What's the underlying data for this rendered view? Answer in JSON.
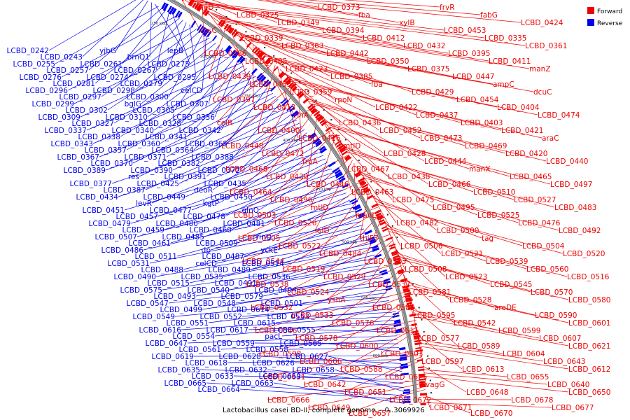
{
  "title": "Lactobacillus casei BD-II, complete genome. - 0..3069926",
  "legend": [
    {
      "label": "Forward",
      "color": "#ee0000"
    },
    {
      "label": "Reverse",
      "color": "#0000ee"
    }
  ],
  "colors": {
    "forward": "#ee0000",
    "reverse": "#0000ee",
    "ring": "#777777"
  },
  "scale_marks": [
    "250 kbp",
    "300 kbp",
    "350 kbp",
    "400 kbp",
    "450 kbp",
    "500 kbp",
    "550 kbp",
    "600 kbp"
  ],
  "labels": {
    "forward": [
      "theD",
      "LCBD_0325",
      "LCBD_0349",
      "LCBD_0373",
      "fba",
      "xylB",
      "frvR",
      "fabG",
      "LCBD_0424",
      "rbsC",
      "LCBD_0339",
      "LCBD_0363",
      "LCBD_0394",
      "LCBD_0412",
      "LCBD_0432",
      "LCBD_0453",
      "LCBD_0335",
      "LCBD_0361",
      "LCBD_0386",
      "LCBD_0405",
      "LCBD_0423",
      "LCBD_0442",
      "LCBD_0350",
      "LCBD_0375",
      "LCBD_0395",
      "LCBD_0411",
      "manZ",
      "LCBD_0439",
      "LCBD_0455",
      "LCBD_0359",
      "LCBD_0385",
      "fba",
      "LCBD_0429",
      "LCBD_0447",
      "ampC",
      "dcuC",
      "LCBD_0397",
      "LCBD_0413",
      "rihA",
      "rpoN",
      "LCBD_0422",
      "LCBD_0437",
      "LCBD_0454",
      "LCBD_0404",
      "LCBD_0474",
      "celR",
      "LCBD_0400",
      "LCBD_0416",
      "LCBD_0436",
      "LCBD_0452",
      "LCBD_0473",
      "LCBD_0403",
      "LCBD_0421",
      "araC",
      "LCBD_0448",
      "LCBD_0472",
      "fruA",
      "mtlD",
      "LCBD_0428",
      "LCBD_0444",
      "LCBD_0469",
      "LCBD_0420",
      "LCBD_0440",
      "LCBD_0468",
      "LCBD_0430",
      "LCBD_0446",
      "LCBD_0467",
      "LCBD_0438",
      "LCBD_0466",
      "manX",
      "LCBD_0465",
      "LCBD_0497",
      "LCBD_0464",
      "LCBD_0496",
      "mtlD",
      "LCBD_0463",
      "LCBD_0475",
      "LCBD_0495",
      "LCBD_0510",
      "LCBD_0527",
      "LCBD_0483",
      "LCBD_0503",
      "LCBD_0526",
      "loID",
      "manL",
      "LCBD_0482",
      "LCBD_0500",
      "LCBD_0525",
      "LCBD_0476",
      "LCBD_0492",
      "LCBD_0505",
      "LCBD_0522",
      "LCBD_0484",
      "thiF3",
      "LCBD_0506",
      "LCBD_0521",
      "tag",
      "LCBD_0504",
      "LCBD_0520",
      "LCBD_0544",
      "LCBD_0519",
      "LCBD_0529",
      "LCBD_0543",
      "LCBD_0508",
      "LCBD_0523",
      "LCBD_0539",
      "LCBD_0560",
      "LCBD_0516",
      "LCBD_0538",
      "LCBD_0524",
      "yshA",
      "LCBD_0537",
      "LCBD_0581",
      "LCBD_0528",
      "LCBD_0545",
      "LCBD_0570",
      "LCBD_0580",
      "LCBD_0532",
      "LCBD_0533",
      "LCBD_0576",
      "LCBD_0585",
      "LCBD_0595",
      "LCBD_0542",
      "aroDE",
      "LCBD_0590",
      "LCBD_0601",
      "LCBD_0546",
      "LCBD_0578",
      "LCBD_0600",
      "LCBD_0611",
      "LCBD_0577",
      "LCBD_0589",
      "LCBD_0599",
      "LCBD_0607",
      "LCBD_0621",
      "LCBD_0598",
      "LCBD_0606",
      "LCBD_0588",
      "LCBD_0603",
      "LCBD_0597",
      "LCBD_0613",
      "LCBD_0604",
      "LCBD_0643",
      "LCBD_0612",
      "LCBD_0631",
      "LCBD_0642",
      "LCBD_0651",
      "LCBD_0625",
      "vagG",
      "LCBD_0648",
      "LCBD_0655",
      "LCBD_0640",
      "LCBD_0650",
      "LCBD_0666",
      "LCBD_0649",
      "LCBD_0657",
      "LCBD_0672",
      "LCBD_0671",
      "LCBD_0670",
      "LCBD_0678",
      "LCBD_0677"
    ],
    "reverse": [
      "LCBD_0242",
      "LCBD_0243",
      "yjbG",
      "brnQ1",
      "lepB",
      "LCBD_0255",
      "LCBD_0257",
      "LCBD_0261",
      "LCBD_0267",
      "LCBD_0275",
      "LCBD_0276",
      "LCBD_0281",
      "LCBD_0274",
      "LCBD_0279",
      "LCBD_0295",
      "LCBD_0296",
      "LCBD_0297",
      "LCBD_0298",
      "LCBD_0300",
      "celCD",
      "LCBD_0299",
      "LCBD_0302",
      "bglG",
      "LCBD_0305",
      "LCBD_0307",
      "LCBD_0309",
      "LCBD_0327",
      "LCBD_0310",
      "LCBD_0328",
      "LCBD_0336",
      "LCBD_0337",
      "LCBD_0338",
      "LCBD_0340",
      "LCBD_0341",
      "LCBD_0342",
      "LCBD_0343",
      "LCBD_0357",
      "LCBD_0360",
      "LCBD_0364",
      "LCBD_0365",
      "LCBD_0367",
      "LCBD_0370",
      "LCBD_0371",
      "LCBD_0382",
      "LCBD_0388",
      "LCBD_0389",
      "res",
      "LCBD_0390",
      "LCBD_0391",
      "LCBD_0372",
      "LCBD_0377",
      "LCBD_0387",
      "LCBD_0425",
      "deoR",
      "LCBD_0435",
      "LCBD_0434",
      "levR",
      "LCBD_0449",
      "kgtP",
      "LCBD_0450",
      "LCBD_0451",
      "LCBD_0457",
      "LCBD_0477",
      "LCBD_0478",
      "glnQ",
      "LCBD_0479",
      "LCBD_0459",
      "LCBD_0480",
      "LCBD_0460",
      "LCBD_0481",
      "LCBD_0507",
      "LCBD_0461",
      "LCBD_0485",
      "LCBD_0509",
      "rinQ",
      "LCBD_0486",
      "LCBD_0511",
      "dp",
      "LCBD_0487",
      "yckE",
      "LCBD_0531",
      "LCBD_0488",
      "celCD",
      "LCBD_0489",
      "LCBD_0514",
      "LCBD_0490",
      "LCBD_0515",
      "LCBD_0535",
      "LCBD_0491",
      "LCBD_0536",
      "LCBD_0575",
      "LCBD_0493",
      "LCBD_0540",
      "LCBD_0579",
      "LCBD_0494",
      "LCBD_0547",
      "LCBD_0499",
      "LCBD_0548",
      "LCBD_0614",
      "LCBD_0501",
      "LCBD_0549",
      "LCBD_0551",
      "LCBD_0552",
      "LCBD_0615",
      "LCBD_0553",
      "LCBD_0616",
      "LCBD_0554",
      "LCBD_0617",
      "pacL",
      "LCBD_0555",
      "LCBD_0647",
      "LCBD_0561",
      "LCBD_0559",
      "LCBD_0558",
      "LCBD_0565",
      "LCBD_0619",
      "LCBD_0618",
      "LCBD_0628",
      "LCBD_0626",
      "LCBD_0627",
      "LCBD_0635",
      "LCBD_0633",
      "LCBD_0632",
      "LCBD_0659",
      "LCBD_0658",
      "LCBD_0665",
      "LCBD_0664",
      "LCBD_0663"
    ]
  }
}
